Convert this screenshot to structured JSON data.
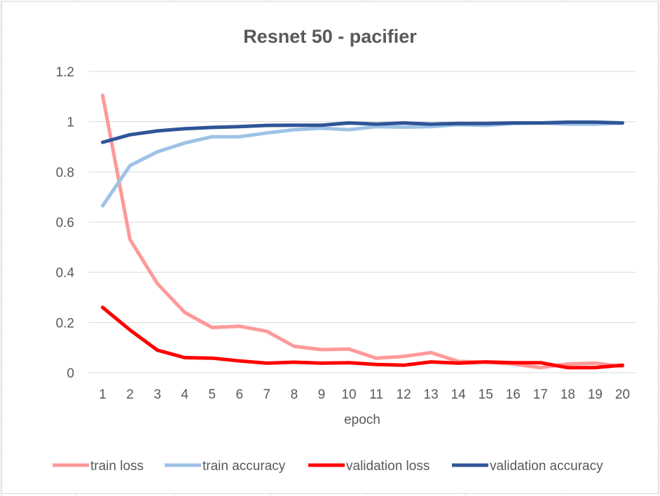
{
  "chart_data": {
    "type": "line",
    "title": "Resnet 50 - pacifier",
    "xlabel": "epoch",
    "ylabel": "",
    "categories": [
      "1",
      "2",
      "3",
      "4",
      "5",
      "6",
      "7",
      "8",
      "9",
      "10",
      "11",
      "12",
      "13",
      "14",
      "15",
      "16",
      "17",
      "18",
      "19",
      "20"
    ],
    "ylim": [
      0,
      1.2
    ],
    "yticks": [
      "0",
      "0.2",
      "0.4",
      "0.6",
      "0.8",
      "1",
      "1.2"
    ],
    "grid": true,
    "legend_position": "bottom",
    "series": [
      {
        "name": "train loss",
        "color": "#ff9999",
        "values": [
          1.105,
          0.53,
          0.355,
          0.24,
          0.18,
          0.185,
          0.165,
          0.105,
          0.092,
          0.094,
          0.058,
          0.065,
          0.08,
          0.045,
          0.042,
          0.035,
          0.02,
          0.035,
          0.038,
          0.025
        ]
      },
      {
        "name": "train accuracy",
        "color": "#9dc3e6",
        "values": [
          0.665,
          0.825,
          0.88,
          0.915,
          0.94,
          0.94,
          0.955,
          0.968,
          0.974,
          0.968,
          0.98,
          0.978,
          0.98,
          0.988,
          0.985,
          0.993,
          0.995,
          0.99,
          0.99,
          0.995
        ]
      },
      {
        "name": "validation loss",
        "color": "#ff0000",
        "values": [
          0.26,
          0.17,
          0.09,
          0.06,
          0.058,
          0.047,
          0.038,
          0.042,
          0.038,
          0.04,
          0.033,
          0.03,
          0.043,
          0.038,
          0.043,
          0.04,
          0.04,
          0.02,
          0.02,
          0.03
        ]
      },
      {
        "name": "validation accuracy",
        "color": "#2f5597",
        "values": [
          0.918,
          0.948,
          0.963,
          0.972,
          0.977,
          0.98,
          0.985,
          0.986,
          0.986,
          0.995,
          0.99,
          0.995,
          0.99,
          0.993,
          0.993,
          0.995,
          0.995,
          0.998,
          0.998,
          0.995
        ]
      }
    ]
  }
}
